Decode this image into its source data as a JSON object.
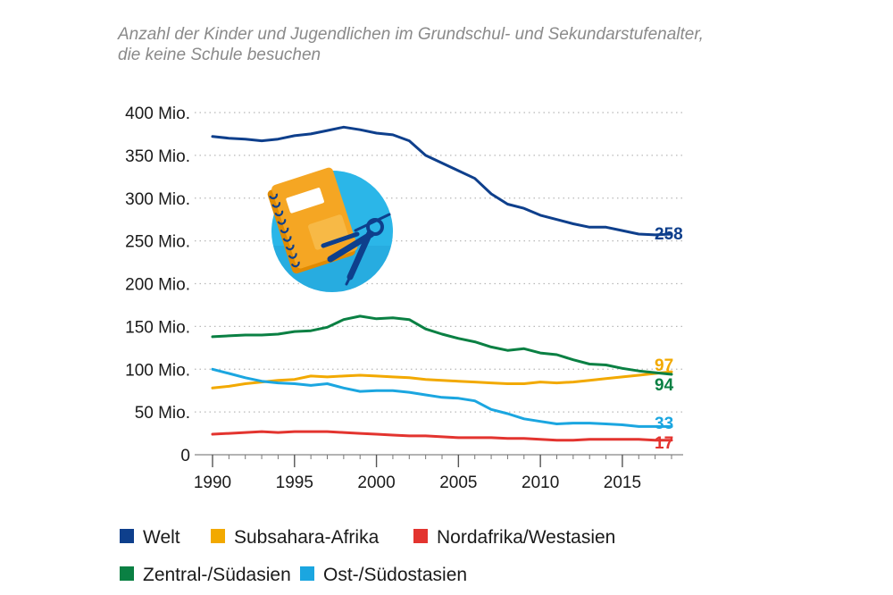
{
  "chart_data": {
    "type": "line",
    "title": "Anzahl der Kinder und Jugendlichen im Grundschul- und Sekundarstufenalter,",
    "subtitle": "die keine Schule besuchen",
    "xlabel": "",
    "ylabel": "",
    "xlim": [
      1990,
      2018
    ],
    "ylim": [
      0,
      400
    ],
    "grid": "horizontal dotted",
    "legend_position": "bottom",
    "x_ticks": [
      {
        "value": 1990,
        "label": "1990"
      },
      {
        "value": 1995,
        "label": "1995"
      },
      {
        "value": 2000,
        "label": "2000"
      },
      {
        "value": 2005,
        "label": "2005"
      },
      {
        "value": 2010,
        "label": "2010"
      },
      {
        "value": 2015,
        "label": "2015"
      }
    ],
    "y_ticks": [
      {
        "value": 0,
        "label": "0"
      },
      {
        "value": 50,
        "label": "50 Mio."
      },
      {
        "value": 100,
        "label": "100 Mio."
      },
      {
        "value": 150,
        "label": "150 Mio."
      },
      {
        "value": 200,
        "label": "200 Mio."
      },
      {
        "value": 250,
        "label": "250 Mio."
      },
      {
        "value": 300,
        "label": "300 Mio."
      },
      {
        "value": 350,
        "label": "350 Mio."
      },
      {
        "value": 400,
        "label": "400 Mio."
      }
    ],
    "x": [
      1990,
      1991,
      1992,
      1993,
      1994,
      1995,
      1996,
      1997,
      1998,
      1999,
      2000,
      2001,
      2002,
      2003,
      2004,
      2005,
      2006,
      2007,
      2008,
      2009,
      2010,
      2011,
      2012,
      2013,
      2014,
      2015,
      2016,
      2017,
      2018
    ],
    "series": [
      {
        "name": "Welt",
        "color": "#0e3f8c",
        "end_label": "258",
        "values": [
          372,
          370,
          369,
          367,
          369,
          373,
          375,
          379,
          383,
          380,
          376,
          374,
          367,
          350,
          341,
          332,
          323,
          305,
          293,
          288,
          280,
          275,
          270,
          266,
          266,
          262,
          258,
          257,
          258
        ]
      },
      {
        "name": "Subsahara-Afrika",
        "color": "#f2a900",
        "end_label": "97",
        "values": [
          78,
          80,
          83,
          85,
          87,
          88,
          92,
          91,
          92,
          93,
          92,
          91,
          90,
          88,
          87,
          86,
          85,
          84,
          83,
          83,
          85,
          84,
          85,
          87,
          89,
          91,
          93,
          95,
          97
        ]
      },
      {
        "name": "Nordafrika/Westasien",
        "color": "#e3342f",
        "end_label": "17",
        "values": [
          24,
          25,
          26,
          27,
          26,
          27,
          27,
          27,
          26,
          25,
          24,
          23,
          22,
          22,
          21,
          20,
          20,
          20,
          19,
          19,
          18,
          17,
          17,
          18,
          18,
          18,
          18,
          17,
          17
        ]
      },
      {
        "name": "Zentral-/Südasien",
        "color": "#0a8043",
        "end_label": "94",
        "values": [
          138,
          139,
          140,
          140,
          141,
          144,
          145,
          149,
          158,
          162,
          159,
          160,
          158,
          147,
          141,
          136,
          132,
          126,
          122,
          124,
          119,
          117,
          111,
          106,
          105,
          101,
          98,
          96,
          94
        ]
      },
      {
        "name": "Ost-/Südostasien",
        "color": "#1ba6e0",
        "end_label": "33",
        "values": [
          100,
          95,
          90,
          86,
          84,
          83,
          81,
          83,
          78,
          74,
          75,
          75,
          73,
          70,
          67,
          66,
          63,
          53,
          48,
          42,
          39,
          36,
          37,
          37,
          36,
          35,
          33,
          33,
          33
        ]
      }
    ]
  },
  "legend": {
    "items": [
      {
        "label": "Welt",
        "color": "#0e3f8c"
      },
      {
        "label": "Subsahara-Afrika",
        "color": "#f2a900"
      },
      {
        "label": "Nordafrika/Westasien",
        "color": "#e3342f"
      },
      {
        "label": "Zentral-/Südasien",
        "color": "#0a8043"
      },
      {
        "label": "Ost-/Südostasien",
        "color": "#1ba6e0"
      }
    ]
  },
  "illustration": {
    "icon_name": "notebook-and-compass-icon",
    "circle_color": "#2bb6e8",
    "notebook_color": "#f5a623"
  }
}
